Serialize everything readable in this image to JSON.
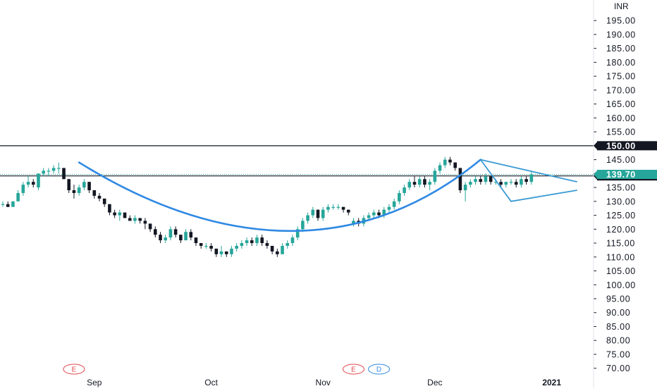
{
  "chart_data": {
    "type": "candlestick",
    "currency": "INR",
    "y_axis": {
      "range": [
        66,
        201
      ],
      "ticks": [
        70,
        75,
        80,
        85,
        90,
        95,
        100,
        105,
        110,
        115,
        120,
        125,
        130,
        135,
        140,
        145,
        150,
        155,
        160,
        165,
        170,
        175,
        180,
        185,
        190,
        195
      ],
      "tick_labels": [
        "70.00",
        "75.00",
        "80.00",
        "85.00",
        "90.00",
        "95.00",
        "100.00",
        "105.00",
        "110.00",
        "115.00",
        "120.00",
        "125.00",
        "130.00",
        "135.00",
        "140.00",
        "145.00",
        "150.00",
        "155.00",
        "160.00",
        "165.00",
        "170.00",
        "175.00",
        "180.00",
        "185.00",
        "190.00",
        "195.00"
      ]
    },
    "x_axis": {
      "labels": [
        {
          "text": "Sep",
          "index": 18,
          "bold": false
        },
        {
          "text": "Oct",
          "index": 41,
          "bold": false
        },
        {
          "text": "Nov",
          "index": 63,
          "bold": false
        },
        {
          "text": "Dec",
          "index": 85,
          "bold": false
        },
        {
          "text": "2021",
          "index": 108,
          "bold": true
        }
      ]
    },
    "candles": [
      [
        129,
        130,
        128,
        129
      ],
      [
        129,
        130,
        128,
        128
      ],
      [
        128,
        130,
        128,
        130
      ],
      [
        130,
        134,
        130,
        133
      ],
      [
        133,
        137,
        132,
        136
      ],
      [
        136,
        139,
        135,
        137
      ],
      [
        137,
        138,
        135,
        136
      ],
      [
        135,
        140,
        134,
        140
      ],
      [
        140,
        142,
        139,
        141
      ],
      [
        141,
        142,
        139,
        141
      ],
      [
        141,
        143,
        140,
        142
      ],
      [
        142,
        144,
        140,
        142
      ],
      [
        142,
        142,
        138,
        138
      ],
      [
        138,
        138,
        133,
        134
      ],
      [
        134,
        136,
        131,
        133
      ],
      [
        133,
        136,
        132,
        135
      ],
      [
        135,
        138,
        134,
        137
      ],
      [
        137,
        137,
        133,
        134
      ],
      [
        134,
        134,
        131,
        132
      ],
      [
        132,
        133,
        130,
        131
      ],
      [
        131,
        131,
        128,
        129
      ],
      [
        129,
        129,
        125,
        126
      ],
      [
        126,
        127,
        124,
        125
      ],
      [
        125,
        127,
        123,
        126
      ],
      [
        126,
        126,
        124,
        124
      ],
      [
        124,
        125,
        123,
        123
      ],
      [
        123,
        125,
        122,
        124
      ],
      [
        124,
        124,
        122,
        123
      ],
      [
        123,
        124,
        120,
        122
      ],
      [
        122,
        122,
        119,
        120
      ],
      [
        120,
        121,
        117,
        118
      ],
      [
        118,
        119,
        115,
        116
      ],
      [
        116,
        118,
        115,
        117
      ],
      [
        117,
        121,
        116,
        120
      ],
      [
        120,
        121,
        117,
        118
      ],
      [
        118,
        118,
        115,
        116
      ],
      [
        116,
        120,
        116,
        119
      ],
      [
        119,
        120,
        116,
        117
      ],
      [
        117,
        117,
        114,
        115
      ],
      [
        115,
        115,
        113,
        114
      ],
      [
        114,
        115,
        113,
        114
      ],
      [
        114,
        115,
        112,
        113
      ],
      [
        113,
        113,
        110,
        111
      ],
      [
        111,
        114,
        110,
        112
      ],
      [
        112,
        112,
        110,
        111
      ],
      [
        111,
        114,
        110,
        113
      ],
      [
        113,
        115,
        112,
        114
      ],
      [
        114,
        116,
        113,
        115
      ],
      [
        115,
        117,
        114,
        116
      ],
      [
        116,
        117,
        114,
        115
      ],
      [
        115,
        118,
        114,
        117
      ],
      [
        117,
        118,
        114,
        115
      ],
      [
        115,
        116,
        113,
        114
      ],
      [
        114,
        114,
        111,
        112
      ],
      [
        112,
        113,
        110,
        111
      ],
      [
        111,
        115,
        111,
        114
      ],
      [
        114,
        116,
        113,
        115
      ],
      [
        115,
        118,
        114,
        117
      ],
      [
        117,
        121,
        116,
        120
      ],
      [
        120,
        124,
        119,
        123
      ],
      [
        123,
        126,
        122,
        125
      ],
      [
        125,
        128,
        124,
        127
      ],
      [
        127,
        127,
        123,
        124
      ],
      [
        124,
        128,
        123,
        127
      ],
      [
        127,
        129,
        126,
        128
      ],
      [
        128,
        129,
        127,
        128
      ],
      [
        128,
        129,
        127,
        128
      ],
      [
        128,
        128,
        126,
        127
      ],
      [
        127,
        127,
        125,
        126
      ],
      [
        122,
        124,
        121,
        123
      ],
      [
        123,
        124,
        121,
        122
      ],
      [
        122,
        125,
        121,
        124
      ],
      [
        124,
        126,
        123,
        125
      ],
      [
        125,
        127,
        124,
        126
      ],
      [
        126,
        127,
        124,
        125
      ],
      [
        125,
        128,
        124,
        127
      ],
      [
        127,
        129,
        126,
        128
      ],
      [
        128,
        131,
        127,
        130
      ],
      [
        130,
        134,
        129,
        133
      ],
      [
        133,
        136,
        132,
        135
      ],
      [
        135,
        138,
        134,
        137
      ],
      [
        137,
        139,
        135,
        136
      ],
      [
        136,
        139,
        135,
        138
      ],
      [
        138,
        139,
        135,
        136
      ],
      [
        136,
        138,
        134,
        137
      ],
      [
        137,
        142,
        136,
        141
      ],
      [
        141,
        144,
        140,
        143
      ],
      [
        143,
        146,
        142,
        145
      ],
      [
        145,
        146,
        143,
        144
      ],
      [
        144,
        144,
        141,
        142
      ],
      [
        142,
        142,
        133,
        134
      ],
      [
        134,
        137,
        130,
        136
      ],
      [
        136,
        138,
        135,
        137
      ],
      [
        137,
        139,
        136,
        138
      ],
      [
        138,
        139,
        136,
        137
      ],
      [
        137,
        140,
        136,
        139
      ],
      [
        139,
        139,
        136,
        137
      ],
      [
        137,
        138,
        136,
        137
      ],
      [
        137,
        138,
        135,
        136
      ],
      [
        136,
        137,
        135,
        137
      ],
      [
        137,
        138,
        136,
        137
      ],
      [
        137,
        138,
        135,
        136
      ],
      [
        136,
        139,
        135,
        138
      ],
      [
        138,
        139,
        136,
        137
      ],
      [
        137,
        141,
        136,
        139.7
      ]
    ],
    "annotations": {
      "horizontal_lines": [
        {
          "value": 150,
          "label": "150.00",
          "style": "solid",
          "color": "#131722"
        },
        {
          "value": 139.15,
          "label": "139.15",
          "style": "solid",
          "color": "#131722"
        },
        {
          "value": 139.7,
          "label": "139.70",
          "style": "dotted",
          "color": "#26a69a"
        }
      ],
      "cup_curve": {
        "color": "#2f89e3",
        "points": [
          [
            15,
            144
          ],
          [
            45,
            110
          ],
          [
            72,
            112
          ],
          [
            94,
            145
          ]
        ]
      },
      "triangle": {
        "color": "#3a9bd5",
        "points": [
          [
            94,
            145
          ],
          [
            100,
            130
          ],
          [
            113,
            134
          ],
          [
            113,
            137
          ]
        ]
      },
      "events": [
        {
          "letter": "E",
          "index": 14,
          "color": "#e2484e"
        },
        {
          "letter": "E",
          "index": 69,
          "color": "#e2484e"
        },
        {
          "letter": "D",
          "index": 74,
          "color": "#2f89e3"
        }
      ]
    },
    "colors": {
      "up": "#26a69a",
      "down": "#131722",
      "grid": "#ffffff",
      "axis_text": "#131722"
    }
  }
}
